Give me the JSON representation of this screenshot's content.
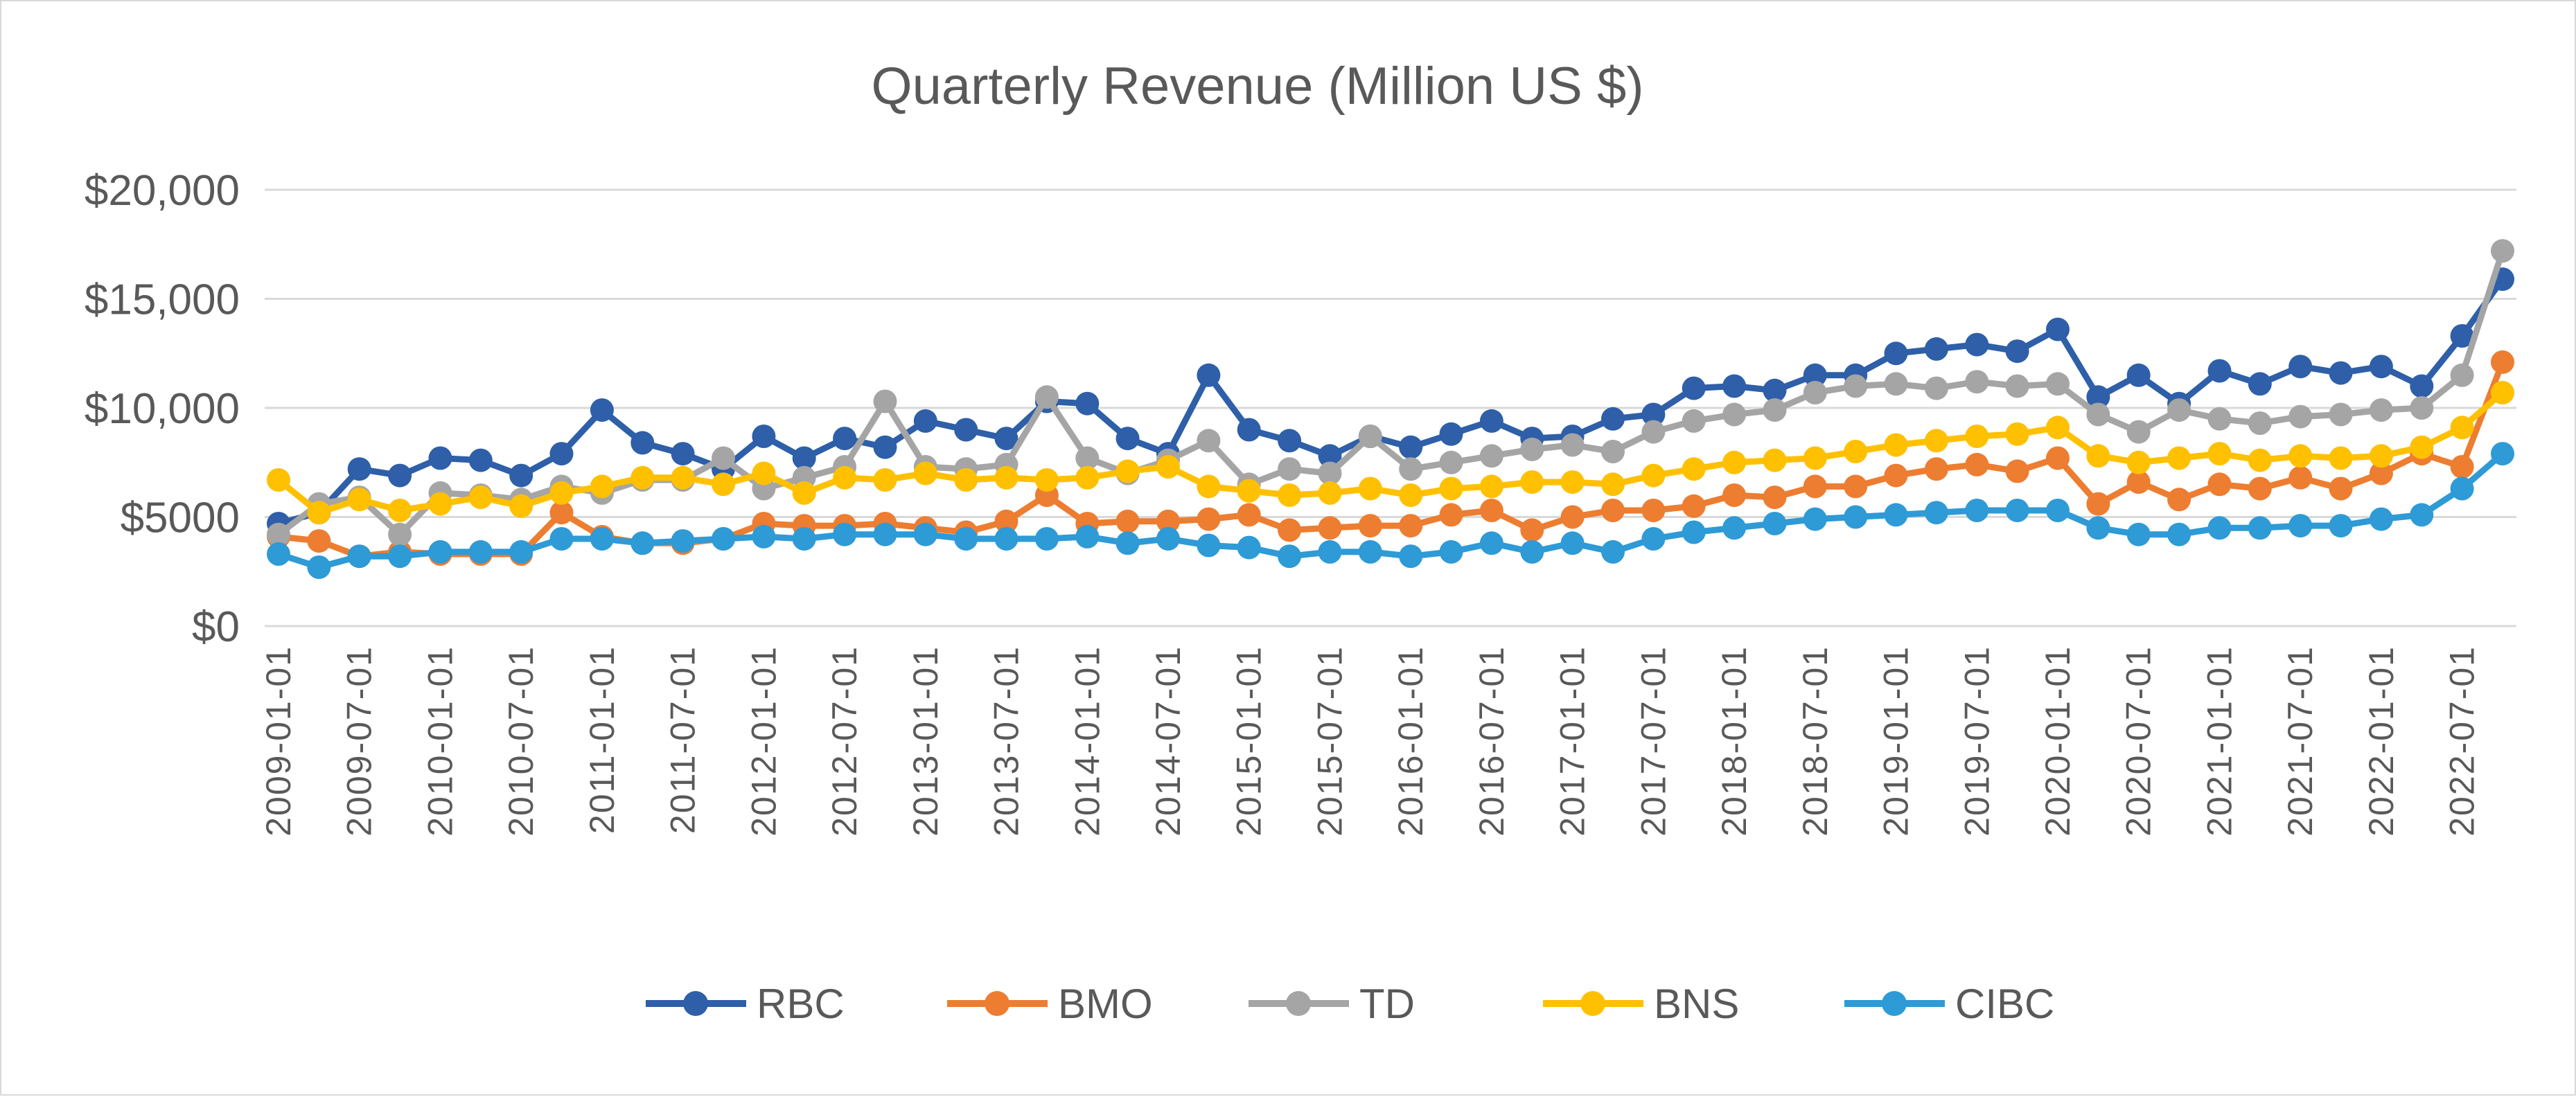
{
  "chart_data": {
    "type": "line",
    "title": "Quarterly Revenue (Million US $)",
    "xlabel": "",
    "ylabel": "",
    "ylim": [
      0,
      20000
    ],
    "yticks": [
      {
        "value": 0,
        "label": "$0"
      },
      {
        "value": 5000,
        "label": "$5000"
      },
      {
        "value": 10000,
        "label": "$10,000"
      },
      {
        "value": 15000,
        "label": "$15,000"
      },
      {
        "value": 20000,
        "label": "$20,000"
      }
    ],
    "grid": true,
    "legend_position": "bottom",
    "categories": [
      "2009-01-01",
      "2009-04-01",
      "2009-07-01",
      "2009-10-01",
      "2010-01-01",
      "2010-04-01",
      "2010-07-01",
      "2010-10-01",
      "2011-01-01",
      "2011-04-01",
      "2011-07-01",
      "2011-10-01",
      "2012-01-01",
      "2012-04-01",
      "2012-07-01",
      "2012-10-01",
      "2013-01-01",
      "2013-04-01",
      "2013-07-01",
      "2013-10-01",
      "2014-01-01",
      "2014-04-01",
      "2014-07-01",
      "2014-10-01",
      "2015-01-01",
      "2015-04-01",
      "2015-07-01",
      "2015-10-01",
      "2016-01-01",
      "2016-04-01",
      "2016-07-01",
      "2016-10-01",
      "2017-01-01",
      "2017-04-01",
      "2017-07-01",
      "2017-10-01",
      "2018-01-01",
      "2018-04-01",
      "2018-07-01",
      "2018-10-01",
      "2019-01-01",
      "2019-04-01",
      "2019-07-01",
      "2019-10-01",
      "2020-01-01",
      "2020-04-01",
      "2020-07-01",
      "2020-10-01",
      "2021-01-01",
      "2021-04-01",
      "2021-07-01",
      "2021-10-01",
      "2022-01-01",
      "2022-04-01",
      "2022-07-01",
      "2022-10-01"
    ],
    "tick_labels": [
      "2009-01-01",
      "2009-07-01",
      "2010-01-01",
      "2010-07-01",
      "2011-01-01",
      "2011-07-01",
      "2012-01-01",
      "2012-07-01",
      "2013-01-01",
      "2013-07-01",
      "2014-01-01",
      "2014-07-01",
      "2015-01-01",
      "2015-07-01",
      "2016-01-01",
      "2016-07-01",
      "2017-01-01",
      "2017-07-01",
      "2018-01-01",
      "2018-07-01",
      "2019-01-01",
      "2019-07-01",
      "2020-01-01",
      "2020-07-01",
      "2021-01-01",
      "2021-07-01",
      "2022-01-01",
      "2022-07-01"
    ],
    "series": [
      {
        "name": "RBC",
        "color": "#2E5FA8",
        "values": [
          4700,
          5200,
          7200,
          6900,
          7700,
          7600,
          6900,
          7900,
          9900,
          8400,
          7900,
          7200,
          8700,
          7700,
          8600,
          8200,
          9400,
          9000,
          8600,
          10300,
          10200,
          8600,
          7900,
          11500,
          9000,
          8500,
          7800,
          8700,
          8200,
          8800,
          9400,
          8600,
          8700,
          9500,
          9700,
          10900,
          11000,
          10800,
          11500,
          11500,
          12500,
          12700,
          12900,
          12600,
          13600,
          10500,
          11500,
          10200,
          11700,
          11100,
          11900,
          11600,
          11900,
          11000,
          13300,
          15900
        ]
      },
      {
        "name": "BMO",
        "color": "#ED7D31",
        "values": [
          4100,
          3900,
          3200,
          3400,
          3300,
          3300,
          3300,
          5200,
          4100,
          3800,
          3800,
          4000,
          4700,
          4600,
          4600,
          4700,
          4500,
          4300,
          4800,
          6000,
          4700,
          4800,
          4800,
          4900,
          5100,
          4400,
          4500,
          4600,
          4600,
          5100,
          5300,
          4400,
          5000,
          5300,
          5300,
          5500,
          6000,
          5900,
          6400,
          6400,
          6900,
          7200,
          7400,
          7100,
          7700,
          5600,
          6600,
          5800,
          6500,
          6300,
          6800,
          6300,
          7000,
          7900,
          7300,
          12100
        ]
      },
      {
        "name": "TD",
        "color": "#A5A5A5",
        "values": [
          4200,
          5600,
          5900,
          4200,
          6100,
          6000,
          5800,
          6400,
          6100,
          6700,
          6700,
          7700,
          6300,
          6800,
          7300,
          10300,
          7300,
          7200,
          7400,
          10500,
          7700,
          7000,
          7600,
          8500,
          6500,
          7200,
          7000,
          8700,
          7200,
          7500,
          7800,
          8100,
          8300,
          8000,
          8900,
          9400,
          9700,
          9900,
          10700,
          11000,
          11100,
          10900,
          11200,
          11000,
          11100,
          9700,
          8900,
          9900,
          9500,
          9300,
          9600,
          9700,
          9900,
          10000,
          11500,
          17200
        ]
      },
      {
        "name": "BNS",
        "color": "#FFC000",
        "values": [
          6700,
          5200,
          5800,
          5300,
          5600,
          5900,
          5500,
          6100,
          6400,
          6800,
          6800,
          6500,
          7000,
          6100,
          6800,
          6700,
          7000,
          6700,
          6800,
          6700,
          6800,
          7100,
          7300,
          6400,
          6200,
          6000,
          6100,
          6300,
          6000,
          6300,
          6400,
          6600,
          6600,
          6500,
          6900,
          7200,
          7500,
          7600,
          7700,
          8000,
          8300,
          8500,
          8700,
          8800,
          9100,
          7800,
          7500,
          7700,
          7900,
          7600,
          7800,
          7700,
          7800,
          8200,
          9100,
          10700
        ]
      },
      {
        "name": "CIBC",
        "color": "#2E9AD6",
        "values": [
          3300,
          2700,
          3200,
          3200,
          3400,
          3400,
          3400,
          4000,
          4000,
          3800,
          3900,
          4000,
          4100,
          4000,
          4200,
          4200,
          4200,
          4000,
          4000,
          4000,
          4100,
          3800,
          4000,
          3700,
          3600,
          3200,
          3400,
          3400,
          3200,
          3400,
          3800,
          3400,
          3800,
          3400,
          4000,
          4300,
          4500,
          4700,
          4900,
          5000,
          5100,
          5200,
          5300,
          5300,
          5300,
          4500,
          4200,
          4200,
          4500,
          4500,
          4600,
          4600,
          4900,
          5100,
          6300,
          7900
        ]
      }
    ]
  }
}
